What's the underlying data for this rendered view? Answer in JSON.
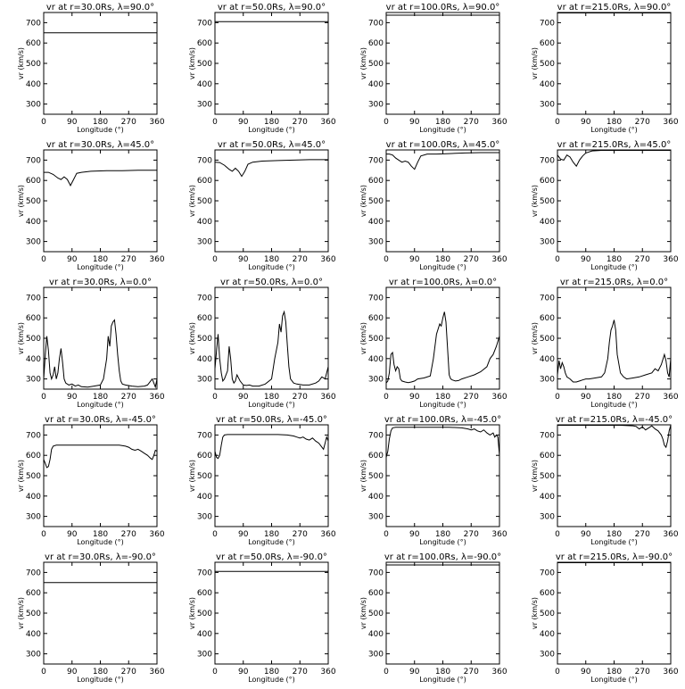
{
  "figure": {
    "rows": 5,
    "cols": 4,
    "xlabel": "Longitude (°)",
    "ylabel": "vr (km/s)"
  },
  "chart_data": [
    {
      "type": "line",
      "title": "vr at r=30.0Rs, λ=90.0°",
      "xlabel": "Longitude (°)",
      "ylabel": "vr (km/s)",
      "xlim": [
        0,
        360
      ],
      "ylim": [
        250,
        750
      ],
      "xticks": [
        0,
        90,
        180,
        270,
        360
      ],
      "yticks": [
        300,
        400,
        500,
        600,
        700
      ],
      "x": [
        0,
        360
      ],
      "y": [
        650,
        650
      ]
    },
    {
      "type": "line",
      "title": "vr at r=50.0Rs, λ=90.0°",
      "xlabel": "Longitude (°)",
      "ylabel": "vr (km/s)",
      "xlim": [
        0,
        360
      ],
      "ylim": [
        250,
        750
      ],
      "xticks": [
        0,
        90,
        180,
        270,
        360
      ],
      "yticks": [
        300,
        400,
        500,
        600,
        700
      ],
      "x": [
        0,
        360
      ],
      "y": [
        705,
        705
      ]
    },
    {
      "type": "line",
      "title": "vr at r=100.0Rs, λ=90.0°",
      "xlabel": "Longitude (°)",
      "ylabel": "vr (km/s)",
      "xlim": [
        0,
        360
      ],
      "ylim": [
        250,
        750
      ],
      "xticks": [
        0,
        90,
        180,
        270,
        360
      ],
      "yticks": [
        300,
        400,
        500,
        600,
        700
      ],
      "x": [
        0,
        360
      ],
      "y": [
        737,
        737
      ]
    },
    {
      "type": "line",
      "title": "vr at r=215.0Rs, λ=90.0°",
      "xlabel": "Longitude (°)",
      "ylabel": "vr (km/s)",
      "xlim": [
        0,
        360
      ],
      "ylim": [
        250,
        750
      ],
      "xticks": [
        0,
        90,
        180,
        270,
        360
      ],
      "yticks": [
        300,
        400,
        500,
        600,
        700
      ],
      "x": [
        0,
        360
      ],
      "y": [
        748,
        748
      ]
    },
    {
      "type": "line",
      "title": "vr at r=30.0Rs, λ=45.0°",
      "xlabel": "Longitude (°)",
      "ylabel": "vr (km/s)",
      "xlim": [
        0,
        360
      ],
      "ylim": [
        250,
        750
      ],
      "xticks": [
        0,
        90,
        180,
        270,
        360
      ],
      "yticks": [
        300,
        400,
        500,
        600,
        700
      ],
      "x": [
        0,
        15,
        30,
        45,
        55,
        65,
        75,
        85,
        95,
        105,
        120,
        150,
        200,
        250,
        300,
        360
      ],
      "y": [
        640,
        640,
        630,
        612,
        605,
        618,
        605,
        575,
        605,
        635,
        640,
        645,
        648,
        648,
        650,
        650
      ]
    },
    {
      "type": "line",
      "title": "vr at r=50.0Rs, λ=45.0°",
      "xlabel": "Longitude (°)",
      "ylabel": "vr (km/s)",
      "xlim": [
        0,
        360
      ],
      "ylim": [
        250,
        750
      ],
      "xticks": [
        0,
        90,
        180,
        270,
        360
      ],
      "yticks": [
        300,
        400,
        500,
        600,
        700
      ],
      "x": [
        0,
        15,
        30,
        45,
        55,
        65,
        75,
        85,
        95,
        105,
        120,
        150,
        200,
        250,
        300,
        360
      ],
      "y": [
        690,
        688,
        675,
        655,
        645,
        660,
        645,
        620,
        645,
        680,
        690,
        695,
        698,
        700,
        702,
        702
      ]
    },
    {
      "type": "line",
      "title": "vr at r=100.0Rs, λ=45.0°",
      "xlabel": "Longitude (°)",
      "ylabel": "vr (km/s)",
      "xlim": [
        0,
        360
      ],
      "ylim": [
        250,
        750
      ],
      "xticks": [
        0,
        90,
        180,
        270,
        360
      ],
      "yticks": [
        300,
        400,
        500,
        600,
        700
      ],
      "x": [
        0,
        10,
        20,
        30,
        40,
        50,
        60,
        70,
        80,
        90,
        100,
        110,
        130,
        160,
        200,
        250,
        300,
        360
      ],
      "y": [
        730,
        730,
        725,
        710,
        700,
        690,
        695,
        690,
        670,
        655,
        690,
        720,
        730,
        730,
        732,
        735,
        737,
        737
      ]
    },
    {
      "type": "line",
      "title": "vr at r=215.0Rs, λ=45.0°",
      "xlabel": "Longitude (°)",
      "ylabel": "vr (km/s)",
      "xlim": [
        0,
        360
      ],
      "ylim": [
        250,
        750
      ],
      "xticks": [
        0,
        90,
        180,
        270,
        360
      ],
      "yticks": [
        300,
        400,
        500,
        600,
        700
      ],
      "x": [
        0,
        10,
        20,
        30,
        40,
        50,
        60,
        70,
        80,
        90,
        110,
        140,
        200,
        260,
        360
      ],
      "y": [
        725,
        705,
        700,
        725,
        715,
        690,
        670,
        700,
        720,
        735,
        745,
        748,
        748,
        748,
        748
      ]
    },
    {
      "type": "line",
      "title": "vr at r=30.0Rs, λ=0.0°",
      "xlabel": "Longitude (°)",
      "ylabel": "vr (km/s)",
      "xlim": [
        0,
        360
      ],
      "ylim": [
        250,
        750
      ],
      "xticks": [
        0,
        90,
        180,
        270,
        360
      ],
      "yticks": [
        300,
        400,
        500,
        600,
        700
      ],
      "x": [
        0,
        5,
        10,
        15,
        20,
        25,
        30,
        35,
        40,
        45,
        50,
        55,
        60,
        65,
        70,
        80,
        90,
        100,
        110,
        120,
        140,
        160,
        180,
        190,
        200,
        205,
        210,
        215,
        220,
        225,
        230,
        235,
        240,
        245,
        250,
        260,
        280,
        300,
        320,
        330,
        340,
        345,
        350,
        355,
        360
      ],
      "y": [
        300,
        420,
        510,
        440,
        330,
        300,
        320,
        360,
        300,
        330,
        400,
        450,
        380,
        300,
        280,
        270,
        275,
        265,
        270,
        262,
        260,
        265,
        270,
        300,
        400,
        510,
        460,
        560,
        580,
        590,
        520,
        420,
        340,
        290,
        275,
        270,
        265,
        262,
        265,
        270,
        290,
        300,
        280,
        260,
        300
      ]
    },
    {
      "type": "line",
      "title": "vr at r=50.0Rs, λ=0.0°",
      "xlabel": "Longitude (°)",
      "ylabel": "vr (km/s)",
      "xlim": [
        0,
        360
      ],
      "ylim": [
        250,
        750
      ],
      "xticks": [
        0,
        90,
        180,
        270,
        360
      ],
      "yticks": [
        300,
        400,
        500,
        600,
        700
      ],
      "x": [
        0,
        5,
        10,
        15,
        20,
        25,
        30,
        40,
        45,
        50,
        55,
        60,
        65,
        70,
        80,
        90,
        100,
        110,
        120,
        140,
        160,
        180,
        190,
        200,
        205,
        210,
        215,
        220,
        225,
        230,
        235,
        240,
        250,
        260,
        280,
        300,
        320,
        330,
        340,
        350,
        360
      ],
      "y": [
        350,
        440,
        520,
        400,
        330,
        290,
        300,
        340,
        460,
        400,
        300,
        280,
        290,
        320,
        290,
        270,
        268,
        270,
        265,
        265,
        275,
        300,
        400,
        480,
        570,
        530,
        610,
        630,
        580,
        470,
        360,
        300,
        280,
        275,
        270,
        270,
        280,
        290,
        310,
        300,
        360
      ]
    },
    {
      "type": "line",
      "title": "vr at r=100.0Rs, λ=0.0°",
      "xlabel": "Longitude (°)",
      "ylabel": "vr (km/s)",
      "xlim": [
        0,
        360
      ],
      "ylim": [
        250,
        750
      ],
      "xticks": [
        0,
        90,
        180,
        270,
        360
      ],
      "yticks": [
        300,
        400,
        500,
        600,
        700
      ],
      "x": [
        0,
        5,
        10,
        15,
        20,
        25,
        30,
        35,
        40,
        45,
        50,
        60,
        70,
        80,
        90,
        100,
        120,
        140,
        150,
        160,
        170,
        175,
        180,
        185,
        190,
        195,
        200,
        205,
        210,
        220,
        230,
        240,
        260,
        280,
        300,
        320,
        330,
        340,
        350,
        360
      ],
      "y": [
        280,
        290,
        330,
        420,
        430,
        370,
        340,
        360,
        350,
        300,
        290,
        285,
        282,
        285,
        290,
        300,
        305,
        315,
        400,
        520,
        570,
        560,
        600,
        630,
        580,
        450,
        320,
        300,
        295,
        290,
        292,
        300,
        310,
        320,
        335,
        360,
        400,
        420,
        460,
        510
      ]
    },
    {
      "type": "line",
      "title": "vr at r=215.0Rs, λ=0.0°",
      "xlabel": "Longitude (°)",
      "ylabel": "vr (km/s)",
      "xlim": [
        0,
        360
      ],
      "ylim": [
        250,
        750
      ],
      "xticks": [
        0,
        90,
        180,
        270,
        360
      ],
      "yticks": [
        300,
        400,
        500,
        600,
        700
      ],
      "x": [
        0,
        5,
        10,
        15,
        20,
        25,
        30,
        40,
        50,
        60,
        70,
        80,
        90,
        100,
        120,
        140,
        150,
        160,
        165,
        170,
        175,
        180,
        185,
        190,
        200,
        210,
        220,
        240,
        260,
        280,
        300,
        310,
        320,
        330,
        340,
        345,
        350,
        355,
        360
      ],
      "y": [
        320,
        390,
        350,
        380,
        360,
        330,
        310,
        300,
        285,
        285,
        290,
        295,
        300,
        300,
        305,
        310,
        330,
        400,
        480,
        540,
        560,
        590,
        540,
        420,
        330,
        310,
        300,
        305,
        310,
        320,
        330,
        350,
        340,
        370,
        420,
        390,
        330,
        310,
        400
      ]
    },
    {
      "type": "line",
      "title": "vr at r=30.0Rs, λ=-45.0°",
      "xlabel": "Longitude (°)",
      "ylabel": "vr (km/s)",
      "xlim": [
        0,
        360
      ],
      "ylim": [
        250,
        750
      ],
      "xticks": [
        0,
        90,
        180,
        270,
        360
      ],
      "yticks": [
        300,
        400,
        500,
        600,
        700
      ],
      "x": [
        0,
        5,
        10,
        15,
        20,
        25,
        30,
        40,
        60,
        100,
        150,
        200,
        240,
        260,
        270,
        280,
        290,
        300,
        310,
        320,
        330,
        340,
        345,
        350,
        355,
        360
      ],
      "y": [
        580,
        560,
        540,
        545,
        580,
        630,
        645,
        650,
        650,
        650,
        650,
        650,
        650,
        645,
        640,
        630,
        625,
        630,
        620,
        610,
        600,
        585,
        580,
        600,
        625,
        620
      ]
    },
    {
      "type": "line",
      "title": "vr at r=50.0Rs, λ=-45.0°",
      "xlabel": "Longitude (°)",
      "ylabel": "vr (km/s)",
      "xlim": [
        0,
        360
      ],
      "ylim": [
        250,
        750
      ],
      "xticks": [
        0,
        90,
        180,
        270,
        360
      ],
      "yticks": [
        300,
        400,
        500,
        600,
        700
      ],
      "x": [
        0,
        5,
        10,
        15,
        20,
        25,
        30,
        40,
        60,
        100,
        150,
        200,
        230,
        250,
        260,
        270,
        280,
        290,
        300,
        310,
        320,
        330,
        340,
        345,
        350,
        355,
        360
      ],
      "y": [
        620,
        590,
        585,
        600,
        650,
        690,
        700,
        702,
        702,
        702,
        702,
        702,
        700,
        695,
        690,
        685,
        690,
        680,
        675,
        685,
        670,
        660,
        640,
        630,
        660,
        690,
        670
      ]
    },
    {
      "type": "line",
      "title": "vr at r=100.0Rs, λ=-45.0°",
      "xlabel": "Longitude (°)",
      "ylabel": "vr (km/s)",
      "xlim": [
        0,
        360
      ],
      "ylim": [
        250,
        750
      ],
      "xticks": [
        0,
        90,
        180,
        270,
        360
      ],
      "yticks": [
        300,
        400,
        500,
        600,
        700
      ],
      "x": [
        0,
        5,
        10,
        15,
        20,
        30,
        50,
        100,
        150,
        200,
        240,
        260,
        270,
        280,
        290,
        300,
        310,
        320,
        330,
        340,
        345,
        350,
        355,
        360
      ],
      "y": [
        590,
        620,
        680,
        720,
        735,
        738,
        738,
        738,
        738,
        738,
        735,
        730,
        725,
        730,
        720,
        715,
        725,
        710,
        700,
        710,
        690,
        700,
        690,
        600
      ]
    },
    {
      "type": "line",
      "title": "vr at r=215.0Rs, λ=-45.0°",
      "xlabel": "Longitude (°)",
      "ylabel": "vr (km/s)",
      "xlim": [
        0,
        360
      ],
      "ylim": [
        250,
        750
      ],
      "xticks": [
        0,
        90,
        180,
        270,
        360
      ],
      "yticks": [
        300,
        400,
        500,
        600,
        700
      ],
      "x": [
        0,
        50,
        100,
        150,
        200,
        240,
        250,
        260,
        270,
        280,
        290,
        300,
        310,
        320,
        330,
        335,
        340,
        345,
        350,
        355,
        360
      ],
      "y": [
        748,
        748,
        748,
        748,
        748,
        745,
        742,
        730,
        740,
        725,
        735,
        745,
        730,
        720,
        700,
        680,
        650,
        640,
        670,
        720,
        748
      ]
    },
    {
      "type": "line",
      "title": "vr at r=30.0Rs, λ=-90.0°",
      "xlabel": "Longitude (°)",
      "ylabel": "vr (km/s)",
      "xlim": [
        0,
        360
      ],
      "ylim": [
        250,
        750
      ],
      "xticks": [
        0,
        90,
        180,
        270,
        360
      ],
      "yticks": [
        300,
        400,
        500,
        600,
        700
      ],
      "x": [
        0,
        360
      ],
      "y": [
        650,
        650
      ]
    },
    {
      "type": "line",
      "title": "vr at r=50.0Rs, λ=-90.0°",
      "xlabel": "Longitude (°)",
      "ylabel": "vr (km/s)",
      "xlim": [
        0,
        360
      ],
      "ylim": [
        250,
        750
      ],
      "xticks": [
        0,
        90,
        180,
        270,
        360
      ],
      "yticks": [
        300,
        400,
        500,
        600,
        700
      ],
      "x": [
        0,
        360
      ],
      "y": [
        705,
        705
      ]
    },
    {
      "type": "line",
      "title": "vr at r=100.0Rs, λ=-90.0°",
      "xlabel": "Longitude (°)",
      "ylabel": "vr (km/s)",
      "xlim": [
        0,
        360
      ],
      "ylim": [
        250,
        750
      ],
      "xticks": [
        0,
        90,
        180,
        270,
        360
      ],
      "yticks": [
        300,
        400,
        500,
        600,
        700
      ],
      "x": [
        0,
        360
      ],
      "y": [
        737,
        737
      ]
    },
    {
      "type": "line",
      "title": "vr at r=215.0Rs, λ=-90.0°",
      "xlabel": "Longitude (°)",
      "ylabel": "vr (km/s)",
      "xlim": [
        0,
        360
      ],
      "ylim": [
        250,
        750
      ],
      "xticks": [
        0,
        90,
        180,
        270,
        360
      ],
      "yticks": [
        300,
        400,
        500,
        600,
        700
      ],
      "x": [
        0,
        360
      ],
      "y": [
        748,
        748
      ]
    }
  ]
}
